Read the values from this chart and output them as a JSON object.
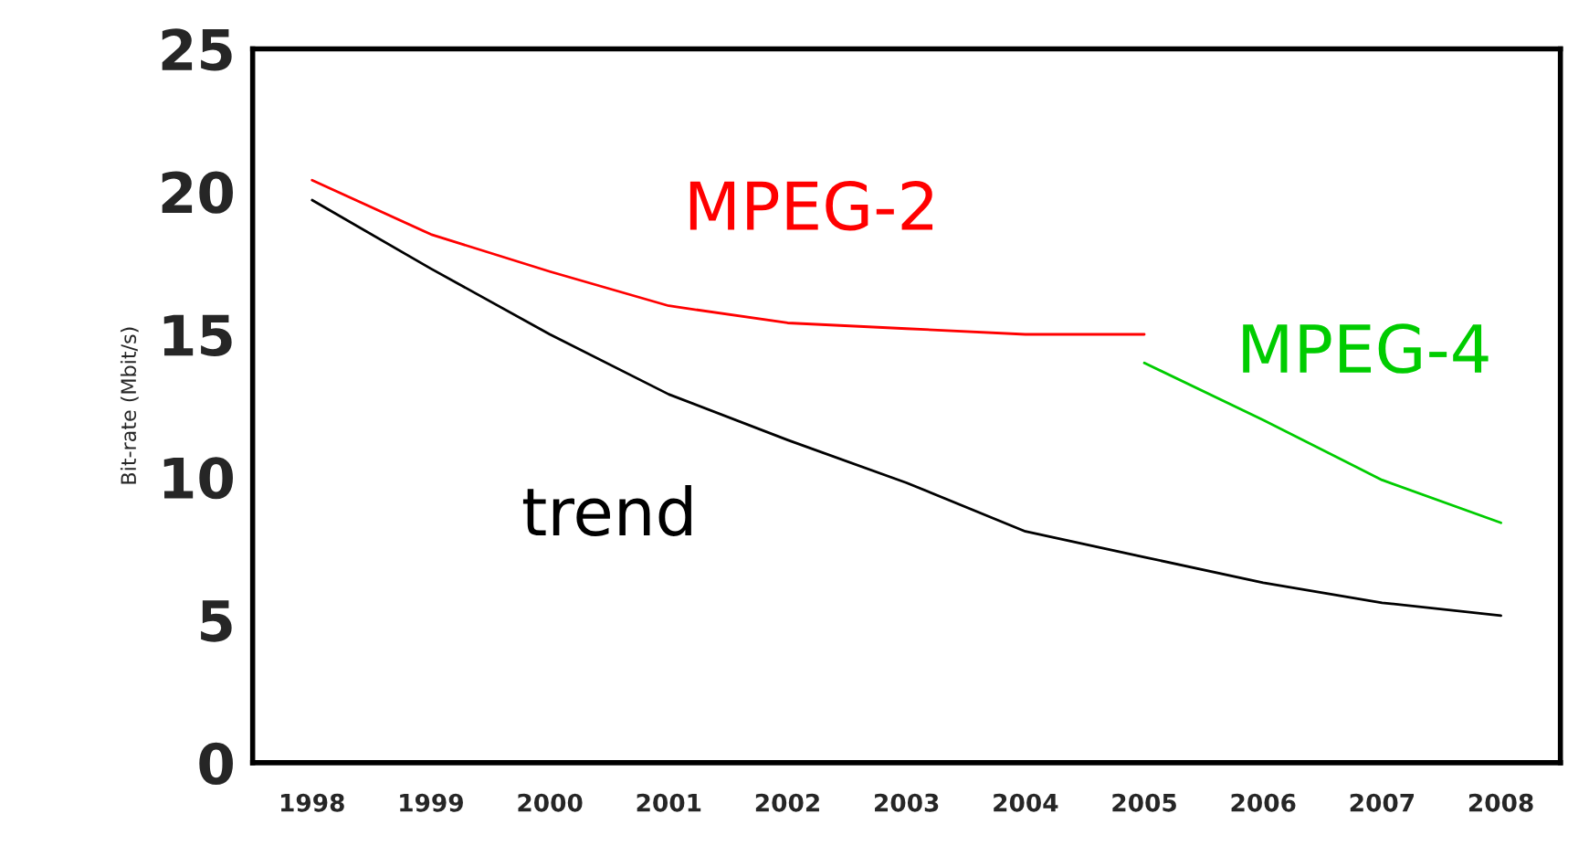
{
  "chart_data": {
    "type": "line",
    "ylabel": "Bit-rate (Mbit/s)",
    "categories": [
      "1998",
      "1999",
      "2000",
      "2001",
      "2002",
      "2003",
      "2004",
      "2005",
      "2006",
      "2007",
      "2008"
    ],
    "ylim": [
      0,
      25
    ],
    "yticks": [
      0,
      5,
      10,
      15,
      20,
      25
    ],
    "grid": false,
    "legend": false,
    "marker": "none",
    "line_style": "solid",
    "series": [
      {
        "name": "MPEG-2",
        "color": "#ff0000",
        "values": [
          20.4,
          18.5,
          17.2,
          16.0,
          15.4,
          15.2,
          15.0,
          15.0,
          null,
          null,
          null
        ]
      },
      {
        "name": "MPEG-4",
        "color": "#00cc00",
        "values": [
          null,
          null,
          null,
          null,
          null,
          null,
          null,
          14.0,
          12.0,
          9.9,
          8.4
        ]
      },
      {
        "name": "trend",
        "color": "#000000",
        "values": [
          19.7,
          17.3,
          15.0,
          12.9,
          11.3,
          9.8,
          8.1,
          7.2,
          6.3,
          5.6,
          5.15
        ]
      }
    ]
  }
}
